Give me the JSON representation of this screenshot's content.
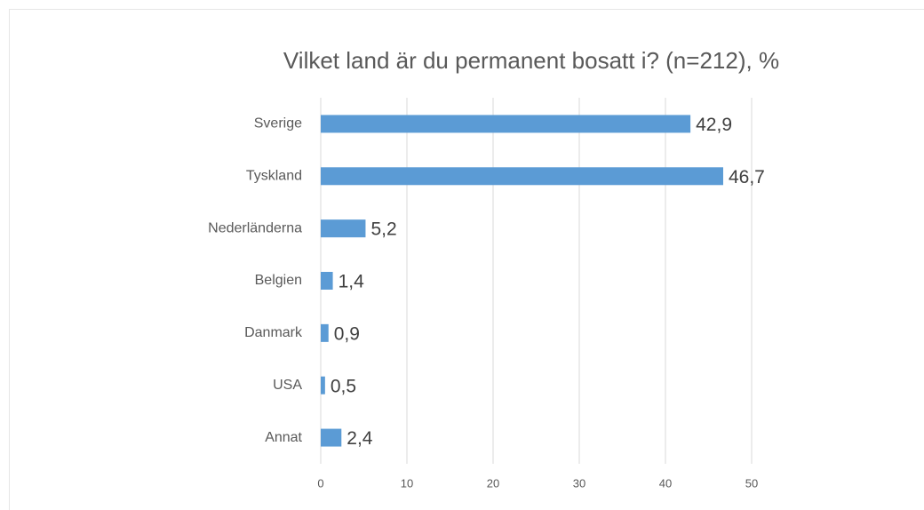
{
  "chart_data": {
    "type": "bar",
    "orientation": "horizontal",
    "title": "Vilket land är du permanent bosatt i? (n=212), %",
    "categories": [
      "Sverige",
      "Tyskland",
      "Nederländerna",
      "Belgien",
      "Danmark",
      "USA",
      "Annat"
    ],
    "values": [
      42.9,
      46.7,
      5.2,
      1.4,
      0.9,
      0.5,
      2.4
    ],
    "value_labels": [
      "42,9",
      "46,7",
      "5,2",
      "1,4",
      "0,9",
      "0,5",
      "2,4"
    ],
    "color": "#5b9bd5",
    "xlim": [
      0,
      50
    ],
    "xticks": [
      0,
      10,
      20,
      30,
      40,
      50
    ],
    "grid": true
  }
}
